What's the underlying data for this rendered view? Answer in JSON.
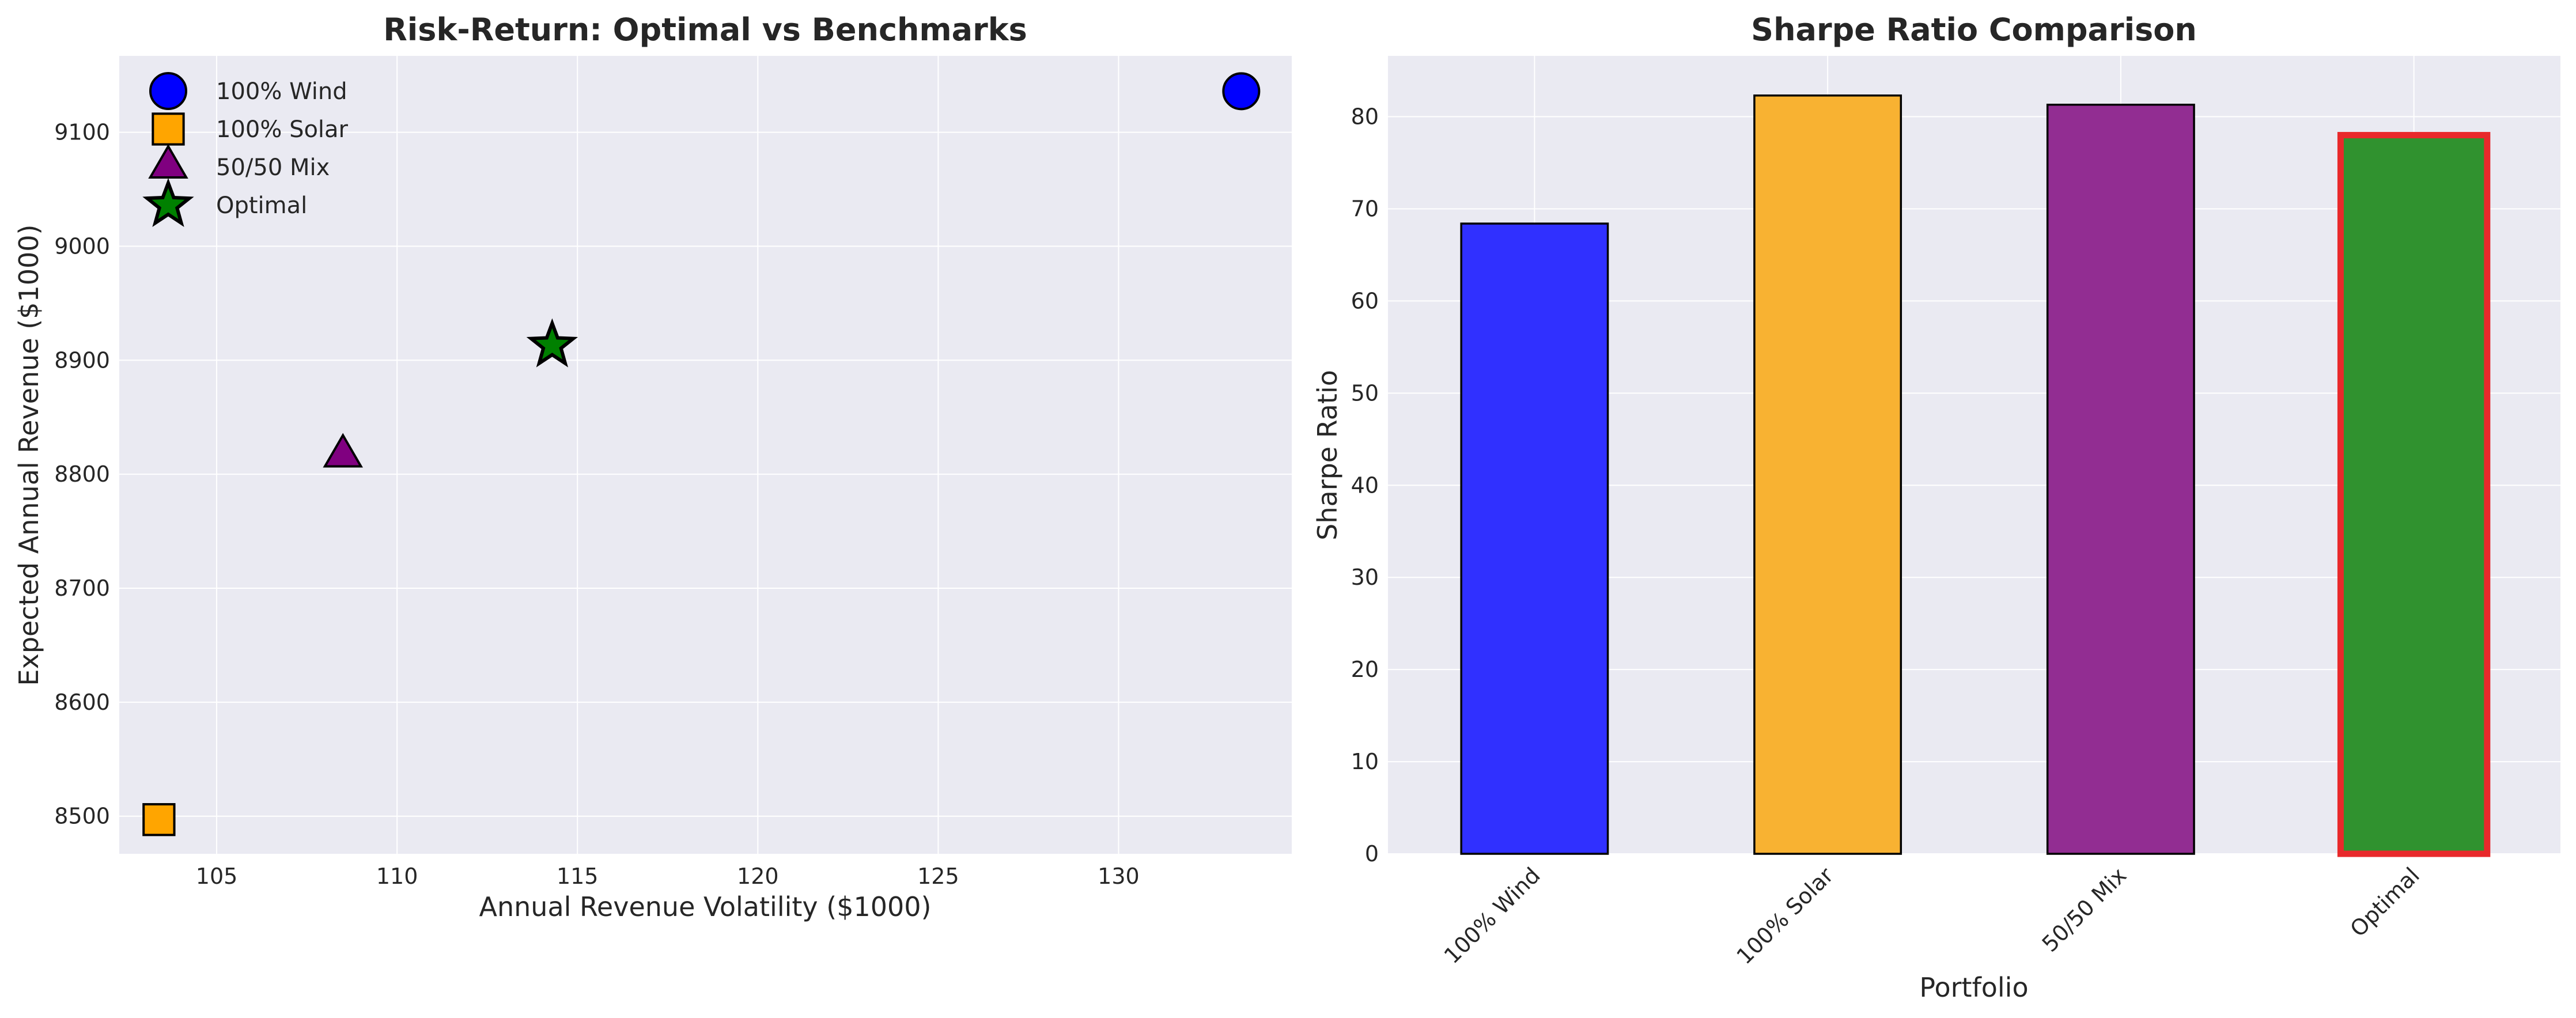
{
  "chart_data": [
    {
      "type": "scatter",
      "title": "Risk-Return: Optimal vs Benchmarks",
      "xlabel": "Annual Revenue Volatility ($1000)",
      "ylabel": "Expected Annual Revenue ($1000)",
      "xlim": [
        102.3,
        134.8
      ],
      "ylim": [
        8467,
        9167
      ],
      "xticks": [
        105,
        110,
        115,
        120,
        125,
        130
      ],
      "yticks": [
        8500,
        8600,
        8700,
        8800,
        8900,
        9000,
        9100
      ],
      "grid": true,
      "legend_position": "top-left",
      "series": [
        {
          "name": "100% Wind",
          "marker": "circle",
          "color": "#0000ff",
          "x": [
            133.4
          ],
          "y": [
            9136
          ]
        },
        {
          "name": "100% Solar",
          "marker": "square",
          "color": "#ffa500",
          "x": [
            103.4
          ],
          "y": [
            8497
          ]
        },
        {
          "name": "50/50 Mix",
          "marker": "triangle",
          "color": "#800080",
          "x": [
            108.5
          ],
          "y": [
            8816
          ]
        },
        {
          "name": "Optimal",
          "marker": "star",
          "color": "#008000",
          "x": [
            114.3
          ],
          "y": [
            8913
          ]
        }
      ]
    },
    {
      "type": "bar",
      "title": "Sharpe Ratio Comparison",
      "xlabel": "Portfolio",
      "ylabel": "Sharpe Ratio",
      "ylim": [
        0,
        86.6
      ],
      "yticks": [
        0,
        10,
        20,
        30,
        40,
        50,
        60,
        70,
        80
      ],
      "grid": true,
      "categories": [
        "100% Wind",
        "100% Solar",
        "50/50 Mix",
        "Optimal"
      ],
      "values": [
        68.4,
        82.3,
        81.3,
        78.0
      ],
      "colors": [
        "#3030ff",
        "#f8b232",
        "#922d92",
        "#30922f"
      ],
      "highlight": {
        "category": "Optimal",
        "edge_color": "#e8292b"
      }
    }
  ]
}
